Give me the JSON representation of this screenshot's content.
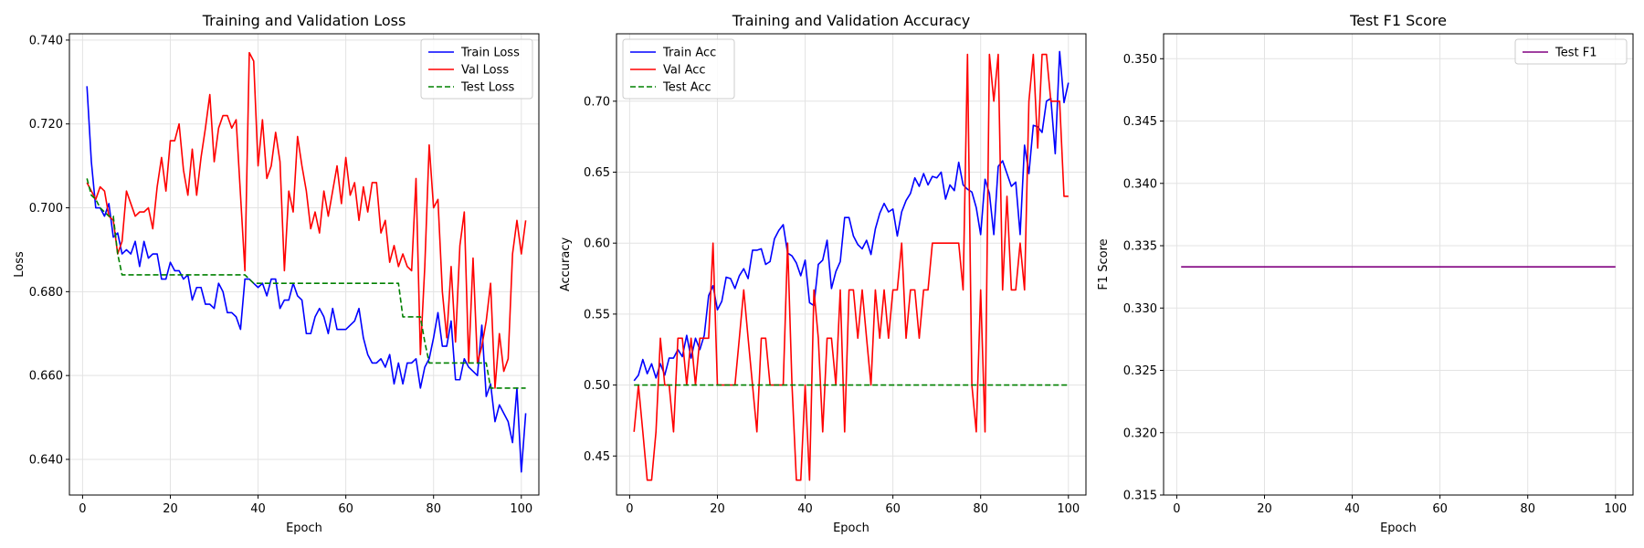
{
  "chart_data": [
    {
      "type": "line",
      "title": "Training and Validation Loss",
      "xlabel": "Epoch",
      "ylabel": "Loss",
      "xlim": [
        -3,
        104
      ],
      "ylim": [
        0.6315,
        0.7415
      ],
      "xticks": [
        0,
        20,
        40,
        60,
        80,
        100
      ],
      "yticks": [
        0.64,
        0.66,
        0.68,
        0.7,
        0.72,
        0.74
      ],
      "yticks_format": "3",
      "grid": true,
      "legend_position": "top-right",
      "series": [
        {
          "name": "Train Loss",
          "color": "#0000ff",
          "style": "solid",
          "values": [
            0.729,
            0.711,
            0.7,
            0.7,
            0.698,
            0.701,
            0.693,
            0.694,
            0.689,
            0.69,
            0.689,
            0.692,
            0.686,
            0.692,
            0.688,
            0.689,
            0.689,
            0.683,
            0.683,
            0.687,
            0.685,
            0.685,
            0.683,
            0.684,
            0.678,
            0.681,
            0.681,
            0.677,
            0.677,
            0.676,
            0.682,
            0.68,
            0.675,
            0.675,
            0.674,
            0.671,
            0.683,
            0.683,
            0.682,
            0.681,
            0.682,
            0.679,
            0.683,
            0.683,
            0.676,
            0.678,
            0.678,
            0.682,
            0.679,
            0.678,
            0.67,
            0.67,
            0.674,
            0.676,
            0.674,
            0.67,
            0.676,
            0.671,
            0.671,
            0.671,
            0.672,
            0.673,
            0.676,
            0.669,
            0.665,
            0.663,
            0.663,
            0.664,
            0.662,
            0.665,
            0.658,
            0.663,
            0.658,
            0.663,
            0.663,
            0.664,
            0.657,
            0.662,
            0.664,
            0.669,
            0.675,
            0.667,
            0.667,
            0.673,
            0.659,
            0.659,
            0.664,
            0.662,
            0.661,
            0.66,
            0.672,
            0.655,
            0.658,
            0.649,
            0.653,
            0.651,
            0.649,
            0.644,
            0.657,
            0.637,
            0.651
          ]
        },
        {
          "name": "Val Loss",
          "color": "#ff0000",
          "style": "solid",
          "values": [
            0.706,
            0.704,
            0.702,
            0.705,
            0.704,
            0.698,
            0.697,
            0.689,
            0.692,
            0.704,
            0.701,
            0.698,
            0.699,
            0.699,
            0.7,
            0.695,
            0.705,
            0.712,
            0.704,
            0.716,
            0.716,
            0.72,
            0.709,
            0.703,
            0.714,
            0.703,
            0.712,
            0.719,
            0.727,
            0.711,
            0.719,
            0.722,
            0.722,
            0.719,
            0.721,
            0.703,
            0.685,
            0.737,
            0.735,
            0.71,
            0.721,
            0.707,
            0.71,
            0.718,
            0.711,
            0.685,
            0.704,
            0.699,
            0.717,
            0.71,
            0.704,
            0.695,
            0.699,
            0.694,
            0.704,
            0.698,
            0.704,
            0.71,
            0.701,
            0.712,
            0.703,
            0.706,
            0.697,
            0.705,
            0.699,
            0.706,
            0.706,
            0.694,
            0.697,
            0.687,
            0.691,
            0.686,
            0.689,
            0.686,
            0.685,
            0.707,
            0.665,
            0.686,
            0.715,
            0.7,
            0.702,
            0.68,
            0.669,
            0.686,
            0.668,
            0.691,
            0.699,
            0.663,
            0.688,
            0.663,
            0.667,
            0.673,
            0.682,
            0.657,
            0.67,
            0.661,
            0.664,
            0.689,
            0.697,
            0.689,
            0.697
          ]
        },
        {
          "name": "Test Loss",
          "color": "#008000",
          "style": "dashed",
          "values": [
            0.707,
            0.703,
            0.702,
            0.7,
            0.699,
            0.698,
            0.698,
            0.689,
            0.684,
            0.684,
            0.684,
            0.684,
            0.684,
            0.684,
            0.684,
            0.684,
            0.684,
            0.684,
            0.684,
            0.684,
            0.684,
            0.684,
            0.684,
            0.684,
            0.684,
            0.684,
            0.684,
            0.684,
            0.684,
            0.684,
            0.684,
            0.684,
            0.684,
            0.684,
            0.684,
            0.684,
            0.684,
            0.683,
            0.682,
            0.682,
            0.682,
            0.682,
            0.682,
            0.682,
            0.682,
            0.682,
            0.682,
            0.682,
            0.682,
            0.682,
            0.682,
            0.682,
            0.682,
            0.682,
            0.682,
            0.682,
            0.682,
            0.682,
            0.682,
            0.682,
            0.682,
            0.682,
            0.682,
            0.682,
            0.682,
            0.682,
            0.682,
            0.682,
            0.682,
            0.682,
            0.682,
            0.682,
            0.674,
            0.674,
            0.674,
            0.674,
            0.674,
            0.668,
            0.663,
            0.663,
            0.663,
            0.663,
            0.663,
            0.663,
            0.663,
            0.663,
            0.663,
            0.663,
            0.663,
            0.663,
            0.663,
            0.663,
            0.657,
            0.657,
            0.657,
            0.657,
            0.657,
            0.657,
            0.657,
            0.657,
            0.657
          ]
        }
      ]
    },
    {
      "type": "line",
      "title": "Training and Validation Accuracy",
      "xlabel": "Epoch",
      "ylabel": "Accuracy",
      "xlim": [
        -3,
        104
      ],
      "ylim": [
        0.4225,
        0.7475
      ],
      "xticks": [
        0,
        20,
        40,
        60,
        80,
        100
      ],
      "yticks": [
        0.45,
        0.5,
        0.55,
        0.6,
        0.65,
        0.7
      ],
      "yticks_format": "2",
      "grid": true,
      "legend_position": "top-left",
      "series": [
        {
          "name": "Train Acc",
          "color": "#0000ff",
          "style": "solid",
          "values": [
            0.503,
            0.507,
            0.518,
            0.508,
            0.515,
            0.505,
            0.515,
            0.507,
            0.519,
            0.519,
            0.525,
            0.52,
            0.535,
            0.519,
            0.533,
            0.525,
            0.535,
            0.563,
            0.57,
            0.553,
            0.559,
            0.576,
            0.575,
            0.568,
            0.577,
            0.582,
            0.575,
            0.595,
            0.595,
            0.596,
            0.585,
            0.587,
            0.603,
            0.609,
            0.613,
            0.593,
            0.591,
            0.586,
            0.577,
            0.588,
            0.558,
            0.556,
            0.585,
            0.588,
            0.602,
            0.568,
            0.58,
            0.587,
            0.618,
            0.618,
            0.605,
            0.599,
            0.596,
            0.602,
            0.592,
            0.61,
            0.621,
            0.628,
            0.622,
            0.624,
            0.605,
            0.622,
            0.63,
            0.635,
            0.646,
            0.64,
            0.649,
            0.641,
            0.647,
            0.646,
            0.65,
            0.631,
            0.641,
            0.637,
            0.657,
            0.641,
            0.638,
            0.636,
            0.625,
            0.606,
            0.645,
            0.635,
            0.606,
            0.654,
            0.658,
            0.649,
            0.64,
            0.643,
            0.606,
            0.669,
            0.649,
            0.683,
            0.682,
            0.678,
            0.7,
            0.702,
            0.663,
            0.735,
            0.699,
            0.713
          ]
        },
        {
          "name": "Val Acc",
          "color": "#ff0000",
          "style": "solid",
          "values": [
            0.467,
            0.5,
            0.467,
            0.433,
            0.433,
            0.467,
            0.533,
            0.5,
            0.5,
            0.467,
            0.533,
            0.533,
            0.5,
            0.533,
            0.5,
            0.533,
            0.533,
            0.533,
            0.6,
            0.5,
            0.5,
            0.5,
            0.5,
            0.5,
            0.533,
            0.567,
            0.533,
            0.5,
            0.467,
            0.533,
            0.533,
            0.5,
            0.5,
            0.5,
            0.5,
            0.6,
            0.5,
            0.433,
            0.433,
            0.5,
            0.433,
            0.567,
            0.533,
            0.467,
            0.533,
            0.533,
            0.5,
            0.567,
            0.467,
            0.567,
            0.567,
            0.533,
            0.567,
            0.533,
            0.5,
            0.567,
            0.533,
            0.567,
            0.533,
            0.567,
            0.567,
            0.6,
            0.533,
            0.567,
            0.567,
            0.533,
            0.567,
            0.567,
            0.6,
            0.6,
            0.6,
            0.6,
            0.6,
            0.6,
            0.6,
            0.567,
            0.733,
            0.5,
            0.467,
            0.567,
            0.467,
            0.733,
            0.7,
            0.733,
            0.567,
            0.633,
            0.567,
            0.567,
            0.6,
            0.567,
            0.7,
            0.733,
            0.667,
            0.733,
            0.733,
            0.7,
            0.7,
            0.7,
            0.633,
            0.633
          ]
        },
        {
          "name": "Test Acc",
          "color": "#008000",
          "style": "dashed",
          "values": [
            0.5,
            0.5,
            0.5,
            0.5,
            0.5,
            0.5,
            0.5,
            0.5,
            0.5,
            0.5,
            0.5,
            0.5,
            0.5,
            0.5,
            0.5,
            0.5,
            0.5,
            0.5,
            0.5,
            0.5,
            0.5,
            0.5,
            0.5,
            0.5,
            0.5,
            0.5,
            0.5,
            0.5,
            0.5,
            0.5,
            0.5,
            0.5,
            0.5,
            0.5,
            0.5,
            0.5,
            0.5,
            0.5,
            0.5,
            0.5,
            0.5,
            0.5,
            0.5,
            0.5,
            0.5,
            0.5,
            0.5,
            0.5,
            0.5,
            0.5,
            0.5,
            0.5,
            0.5,
            0.5,
            0.5,
            0.5,
            0.5,
            0.5,
            0.5,
            0.5,
            0.5,
            0.5,
            0.5,
            0.5,
            0.5,
            0.5,
            0.5,
            0.5,
            0.5,
            0.5,
            0.5,
            0.5,
            0.5,
            0.5,
            0.5,
            0.5,
            0.5,
            0.5,
            0.5,
            0.5,
            0.5,
            0.5,
            0.5,
            0.5,
            0.5,
            0.5,
            0.5,
            0.5,
            0.5,
            0.5,
            0.5,
            0.5,
            0.5,
            0.5,
            0.5,
            0.5,
            0.5,
            0.5,
            0.5,
            0.5
          ]
        }
      ]
    },
    {
      "type": "line",
      "title": "Test F1 Score",
      "xlabel": "Epoch",
      "ylabel": "F1 Score",
      "xlim": [
        -3,
        104
      ],
      "ylim": [
        0.315,
        0.352
      ],
      "xticks": [
        0,
        20,
        40,
        60,
        80,
        100
      ],
      "yticks": [
        0.315,
        0.32,
        0.325,
        0.33,
        0.335,
        0.34,
        0.345,
        0.35
      ],
      "yticks_format": "3",
      "grid": true,
      "legend_position": "top-right",
      "series": [
        {
          "name": "Test F1",
          "color": "#800080",
          "style": "solid",
          "x": [
            1,
            100
          ],
          "values": [
            0.3333,
            0.3333
          ]
        }
      ]
    }
  ]
}
